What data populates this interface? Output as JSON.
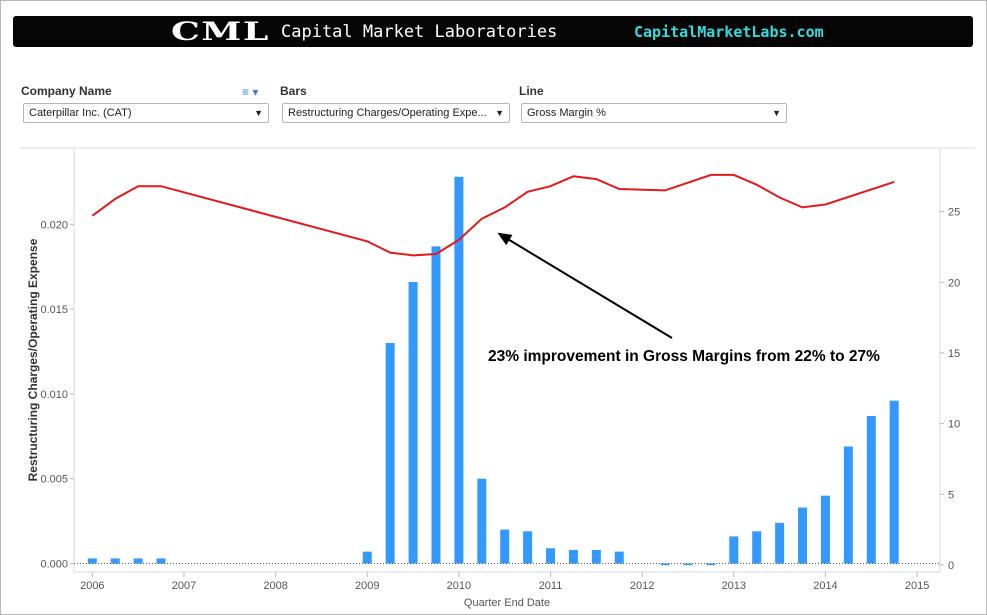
{
  "banner": {
    "logo": "CML",
    "name": "Capital Market Laboratories",
    "url": "CapitalMarketLabs.com"
  },
  "filters": {
    "company": {
      "label": "Company Name",
      "value": "Caterpillar Inc. (CAT)"
    },
    "bars": {
      "label": "Bars",
      "value": "Restructuring Charges/Operating Expe..."
    },
    "line": {
      "label": "Line",
      "value": "Gross Margin %"
    },
    "menu_icon": "list-menu-icon",
    "dropdown_icon": "chevron-down-icon"
  },
  "chart_data": {
    "type": "bar",
    "xlabel": "Quarter End Date",
    "ylabel": "Restructuring Charges/Operating Expense",
    "x_ticks": [
      2006,
      2007,
      2008,
      2009,
      2010,
      2011,
      2012,
      2013,
      2014,
      2015
    ],
    "xlim": [
      2005.8,
      2015.25
    ],
    "ylim": [
      -0.0005,
      0.0245
    ],
    "y_ticks": [
      "0.000",
      "0.005",
      "0.010",
      "0.015",
      "0.020"
    ],
    "y2lim": [
      -0.5,
      29.5
    ],
    "y2_ticks": [
      0,
      5,
      10,
      15,
      20,
      25
    ],
    "grid": false,
    "colors": {
      "bars": "#3399ff",
      "line": "#e31a1c",
      "zero_line": "#555555"
    },
    "bars": {
      "x": [
        2006.0,
        2006.25,
        2006.5,
        2006.75,
        2009.0,
        2009.25,
        2009.5,
        2009.75,
        2010.0,
        2010.25,
        2010.5,
        2010.75,
        2011.0,
        2011.25,
        2011.5,
        2011.75,
        2012.25,
        2012.5,
        2012.75,
        2013.0,
        2013.25,
        2013.5,
        2013.75,
        2014.0,
        2014.25,
        2014.5,
        2014.75
      ],
      "values": [
        0.0003,
        0.0003,
        0.0003,
        0.0003,
        0.0007,
        0.013,
        0.0166,
        0.0187,
        0.0228,
        0.005,
        0.002,
        0.0019,
        0.0009,
        0.0008,
        0.0008,
        0.0007,
        -0.0001,
        -0.0001,
        -0.0001,
        0.0016,
        0.0019,
        0.0024,
        0.0033,
        0.004,
        0.0069,
        0.0087,
        0.0096
      ]
    },
    "line": {
      "x": [
        2006.0,
        2006.25,
        2006.5,
        2006.75,
        2009.0,
        2009.25,
        2009.5,
        2009.75,
        2010.0,
        2010.25,
        2010.5,
        2010.75,
        2011.0,
        2011.25,
        2011.5,
        2011.75,
        2012.25,
        2012.75,
        2013.0,
        2013.25,
        2013.5,
        2013.75,
        2014.0,
        2014.75
      ],
      "values": [
        24.7,
        25.9,
        26.8,
        26.8,
        22.9,
        22.1,
        21.9,
        22.0,
        23.0,
        24.5,
        25.3,
        26.4,
        26.8,
        27.5,
        27.3,
        26.6,
        26.5,
        27.6,
        27.6,
        26.9,
        26.0,
        25.3,
        25.5,
        27.1
      ]
    },
    "annotation": {
      "text": "23% improvement in Gross Margins from 22% to 27%",
      "arrow_target": {
        "x": 2010.42,
        "y2": 23.5
      }
    }
  }
}
